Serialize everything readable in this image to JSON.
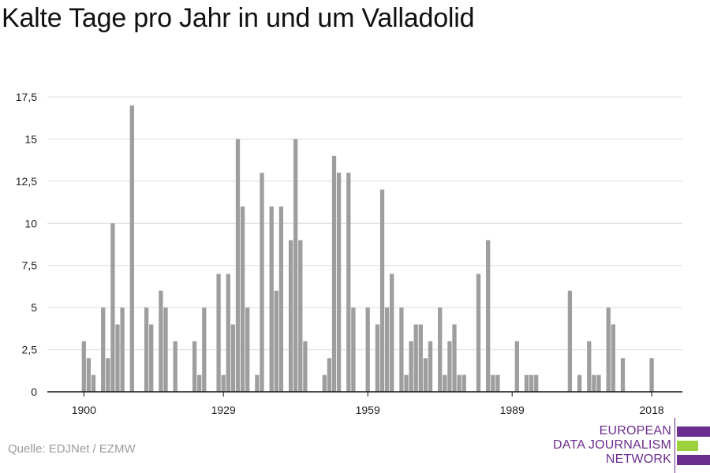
{
  "title": "Kalte Tage pro Jahr in und um Valladolid",
  "source": "Quelle: EDJNet / EZMW",
  "logo": {
    "lines": [
      "EUROPEAN",
      "DATA JOURNALISM",
      "NETWORK"
    ],
    "colors": {
      "purple": "#6b2d8e",
      "green": "#9bd13b"
    }
  },
  "colors": {
    "bar": "#9e9e9e",
    "grid": "#dcdcdc",
    "axis": "#111111",
    "text": "#222222"
  },
  "chart_data": {
    "type": "bar",
    "title": "Kalte Tage pro Jahr in und um Valladolid",
    "xlabel": "",
    "ylabel": "",
    "ylim": [
      0,
      17.5
    ],
    "yticks": [
      0,
      2.5,
      5,
      7.5,
      10,
      12.5,
      15,
      17.5
    ],
    "ytick_labels": [
      "0",
      "2,5",
      "5",
      "7,5",
      "10",
      "12,5",
      "15",
      "17,5"
    ],
    "xlim": [
      1900,
      2018
    ],
    "xticks": [
      1900,
      1929,
      1959,
      1989,
      2018
    ],
    "grid": true,
    "x": [
      1900,
      1901,
      1902,
      1903,
      1904,
      1905,
      1906,
      1907,
      1908,
      1909,
      1910,
      1911,
      1912,
      1913,
      1914,
      1915,
      1916,
      1917,
      1918,
      1919,
      1920,
      1921,
      1922,
      1923,
      1924,
      1925,
      1926,
      1927,
      1928,
      1929,
      1930,
      1931,
      1932,
      1933,
      1934,
      1935,
      1936,
      1937,
      1938,
      1939,
      1940,
      1941,
      1942,
      1943,
      1944,
      1945,
      1946,
      1947,
      1948,
      1949,
      1950,
      1951,
      1952,
      1953,
      1954,
      1955,
      1956,
      1957,
      1958,
      1959,
      1960,
      1961,
      1962,
      1963,
      1964,
      1965,
      1966,
      1967,
      1968,
      1969,
      1970,
      1971,
      1972,
      1973,
      1974,
      1975,
      1976,
      1977,
      1978,
      1979,
      1980,
      1981,
      1982,
      1983,
      1984,
      1985,
      1986,
      1987,
      1988,
      1989,
      1990,
      1991,
      1992,
      1993,
      1994,
      1995,
      1996,
      1997,
      1998,
      1999,
      2000,
      2001,
      2002,
      2003,
      2004,
      2005,
      2006,
      2007,
      2008,
      2009,
      2010,
      2011,
      2012,
      2013,
      2014,
      2015,
      2016,
      2017,
      2018
    ],
    "values": [
      3,
      2,
      1,
      0,
      5,
      2,
      10,
      4,
      5,
      0,
      17,
      0,
      0,
      5,
      4,
      0,
      6,
      5,
      0,
      3,
      0,
      0,
      0,
      3,
      1,
      5,
      0,
      0,
      7,
      1,
      7,
      4,
      15,
      11,
      5,
      0,
      1,
      13,
      0,
      11,
      6,
      11,
      0,
      9,
      15,
      9,
      3,
      0,
      0,
      0,
      1,
      2,
      14,
      13,
      0,
      13,
      5,
      0,
      0,
      5,
      0,
      4,
      12,
      5,
      7,
      0,
      5,
      1,
      3,
      4,
      4,
      2,
      3,
      0,
      5,
      1,
      3,
      4,
      1,
      1,
      0,
      0,
      7,
      0,
      9,
      1,
      1,
      0,
      0,
      0,
      3,
      0,
      1,
      1,
      1,
      0,
      0,
      0,
      0,
      0,
      0,
      6,
      0,
      1,
      0,
      3,
      1,
      1,
      0,
      5,
      4,
      0,
      2,
      0,
      0,
      0,
      0,
      0,
      2
    ]
  }
}
